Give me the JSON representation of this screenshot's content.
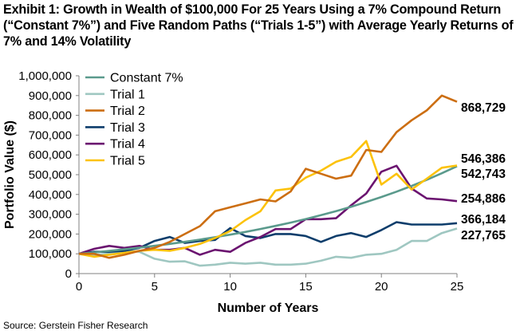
{
  "title": "Exhibit 1: Growth in Wealth of $100,000 For 25 Years Using a 7% Compound Return (“Constant 7%”) and Five Random Paths (“Trials 1-5”) with Average Yearly Returns of 7% and 14% Volatility",
  "source": "Source: Gerstein Fisher Research",
  "chart_data": {
    "type": "line",
    "xlabel": "Number of Years",
    "ylabel": "Portfolio Value ($)",
    "xlim": [
      0,
      25
    ],
    "ylim": [
      0,
      1000000
    ],
    "xticks": [
      0,
      5,
      10,
      15,
      20,
      25
    ],
    "yticks": [
      0,
      100000,
      200000,
      300000,
      400000,
      500000,
      600000,
      700000,
      800000,
      900000,
      1000000
    ],
    "ytick_labels": [
      "0",
      "100,000",
      "200,000",
      "300,000",
      "400,000",
      "500,000",
      "600,000",
      "700,000",
      "800,000",
      "900,000",
      "1,000,000"
    ],
    "grid": false,
    "legend_placement": "top-left",
    "x": [
      0,
      1,
      2,
      3,
      4,
      5,
      6,
      7,
      8,
      9,
      10,
      11,
      12,
      13,
      14,
      15,
      16,
      17,
      18,
      19,
      20,
      21,
      22,
      23,
      24,
      25
    ],
    "series": [
      {
        "name": "Constant 7%",
        "color": "#5a9a8c",
        "values": [
          100000,
          107000,
          114490,
          122504,
          131080,
          140255,
          150073,
          160578,
          171819,
          183846,
          196715,
          210485,
          225219,
          240985,
          257853,
          275903,
          295216,
          315882,
          337993,
          361653,
          386968,
          414056,
          443040,
          474053,
          507237,
          542743
        ],
        "end_label": "542,743"
      },
      {
        "name": "Trial 1",
        "color": "#9fc7c1",
        "values": [
          100000,
          95000,
          100000,
          115000,
          110000,
          75000,
          60000,
          62000,
          40000,
          45000,
          55000,
          50000,
          55000,
          45000,
          45000,
          50000,
          65000,
          85000,
          80000,
          95000,
          100000,
          120000,
          165000,
          165000,
          205000,
          227765
        ],
        "end_label": "227,765"
      },
      {
        "name": "Trial 2",
        "color": "#cc6e12",
        "values": [
          100000,
          100000,
          80000,
          95000,
          115000,
          130000,
          160000,
          200000,
          240000,
          315000,
          335000,
          355000,
          375000,
          365000,
          415000,
          530000,
          505000,
          480000,
          495000,
          625000,
          615000,
          715000,
          775000,
          825000,
          900000,
          868729
        ],
        "end_label": "868,729"
      },
      {
        "name": "Trial 3",
        "color": "#0d3d6b",
        "values": [
          100000,
          110000,
          110000,
          115000,
          130000,
          165000,
          185000,
          155000,
          165000,
          170000,
          230000,
          190000,
          180000,
          200000,
          200000,
          190000,
          160000,
          190000,
          205000,
          185000,
          220000,
          260000,
          248000,
          248000,
          248000,
          254886
        ],
        "end_label": "254,886"
      },
      {
        "name": "Trial 4",
        "color": "#6b1470",
        "values": [
          100000,
          125000,
          140000,
          130000,
          140000,
          120000,
          120000,
          130000,
          95000,
          120000,
          110000,
          155000,
          185000,
          225000,
          225000,
          275000,
          275000,
          280000,
          345000,
          405000,
          515000,
          545000,
          430000,
          380000,
          375000,
          366184
        ],
        "end_label": "366,184"
      },
      {
        "name": "Trial 5",
        "color": "#fcc20a",
        "values": [
          100000,
          85000,
          95000,
          105000,
          115000,
          120000,
          115000,
          130000,
          150000,
          180000,
          215000,
          270000,
          315000,
          420000,
          430000,
          485000,
          520000,
          565000,
          590000,
          670000,
          450000,
          505000,
          425000,
          480000,
          535000,
          546386
        ],
        "end_label": "546,386"
      }
    ]
  }
}
